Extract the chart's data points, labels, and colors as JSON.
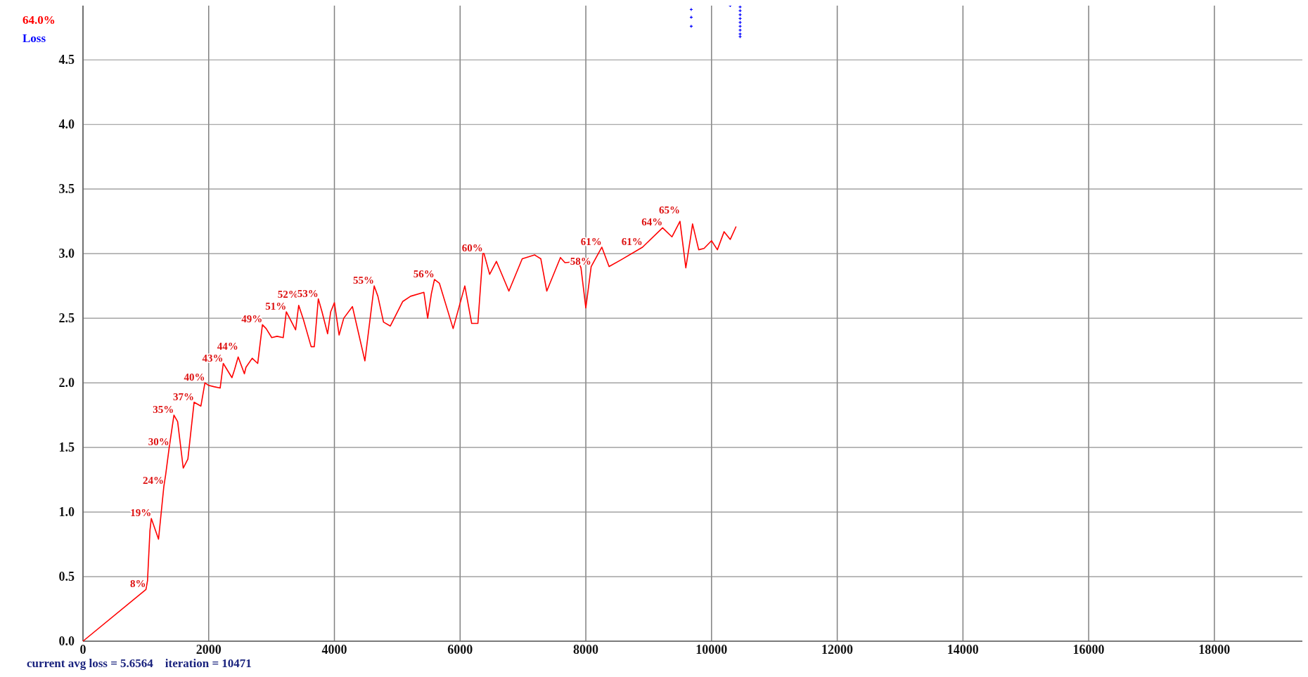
{
  "chart_data": {
    "type": "line",
    "xlim": [
      0,
      19400
    ],
    "ylim": [
      0,
      4.92
    ],
    "y2lim": [
      0,
      98.4
    ],
    "xticks": [
      0,
      2000,
      4000,
      6000,
      8000,
      10000,
      12000,
      14000,
      16000,
      18000
    ],
    "yticks": [
      {
        "value": 0,
        "label": "0.0"
      },
      0.5,
      {
        "value": 1,
        "label": "1.0"
      },
      1.5,
      {
        "value": 2,
        "label": "2.0"
      },
      2.5,
      {
        "value": 3,
        "label": "3.0"
      },
      3.5,
      {
        "value": 4,
        "label": "4.0"
      },
      4.5
    ],
    "grid": true,
    "legend": "top left",
    "annotations": [
      "current avg loss = 5.6564    iteration = 10471"
    ],
    "series": [
      {
        "name": "64.0%",
        "axis": "y2",
        "color": "#ff0000",
        "x": [
          0,
          1002,
          1027,
          1066,
          1087,
          1202,
          1287,
          1316,
          1372,
          1447,
          1506,
          1595,
          1669,
          1768,
          1876,
          1940,
          2000,
          2084,
          2183,
          2232,
          2370,
          2410,
          2469,
          2568,
          2593,
          2692,
          2780,
          2855,
          2914,
          3003,
          3087,
          3186,
          3235,
          3383,
          3432,
          3507,
          3630,
          3680,
          3744,
          3803,
          3892,
          3941,
          4000,
          4075,
          4149,
          4287,
          4485,
          4633,
          4692,
          4781,
          4890,
          5088,
          5211,
          5424,
          5484,
          5543,
          5592,
          5671,
          5889,
          6075,
          6184,
          6283,
          6362,
          6381,
          6470,
          6578,
          6776,
          6988,
          7185,
          7284,
          7379,
          7596,
          7668,
          7881,
          7923,
          8000,
          8085,
          8255,
          8370,
          8553,
          8902,
          9221,
          9370,
          9498,
          9591,
          9668,
          9698,
          9796,
          9881,
          10000,
          10093,
          10200,
          10298,
          10391
        ],
        "values": [
          0,
          8,
          9.4,
          17.2,
          19,
          15.8,
          24,
          25.8,
          30,
          35,
          34,
          26.8,
          28.2,
          37,
          36.4,
          40,
          39.6,
          39.4,
          39.2,
          43,
          40.8,
          42,
          44,
          41.4,
          42.4,
          43.8,
          43,
          49,
          48.4,
          47,
          47.2,
          47,
          51,
          48.2,
          52,
          49.8,
          45.6,
          45.6,
          53,
          51,
          47.6,
          51,
          52.4,
          47.4,
          50,
          51.8,
          43.4,
          55,
          53.4,
          49.4,
          48.8,
          52.6,
          53.4,
          54,
          50,
          53.8,
          56,
          55.4,
          48.4,
          55,
          49.2,
          49.2,
          60,
          60,
          56.8,
          58.8,
          54.2,
          59.2,
          59.8,
          59.2,
          54.2,
          59.4,
          58.6,
          58.8,
          57.8,
          51.6,
          58,
          61,
          58,
          59,
          61,
          64,
          62.6,
          65,
          57.8,
          62.6,
          64.6,
          60.6,
          60.8,
          62,
          60.6,
          63.4,
          62.2,
          64.2
        ],
        "value_labels": [
          null,
          "8%",
          null,
          null,
          "19%",
          null,
          "24%",
          null,
          "30%",
          "35%",
          null,
          null,
          null,
          "37%",
          null,
          "40%",
          null,
          null,
          null,
          "43%",
          null,
          null,
          "44%",
          null,
          null,
          null,
          null,
          "49%",
          null,
          null,
          null,
          null,
          "51%",
          null,
          "52%",
          null,
          null,
          null,
          "53%",
          null,
          null,
          null,
          null,
          null,
          null,
          null,
          null,
          "55%",
          null,
          null,
          null,
          null,
          null,
          null,
          null,
          null,
          "56%",
          null,
          null,
          null,
          null,
          null,
          "60%",
          null,
          null,
          null,
          null,
          null,
          null,
          null,
          null,
          null,
          null,
          null,
          null,
          null,
          "58%",
          "61%",
          null,
          null,
          "61%",
          "64%",
          null,
          "65%",
          null,
          null,
          null,
          null,
          null,
          null,
          null,
          null,
          null,
          null
        ]
      },
      {
        "name": "Loss",
        "type": "scatter",
        "color": "#0000ff",
        "marker": "cross",
        "x": [
          9677,
          9677,
          9677,
          10297,
          10455,
          10455,
          10455,
          10455,
          10455,
          10455,
          10455,
          10455,
          10455
        ],
        "values": [
          4.89,
          4.83,
          4.76,
          4.92,
          4.91,
          4.88,
          4.85,
          4.82,
          4.79,
          4.76,
          4.73,
          4.7,
          4.68
        ]
      }
    ]
  }
}
